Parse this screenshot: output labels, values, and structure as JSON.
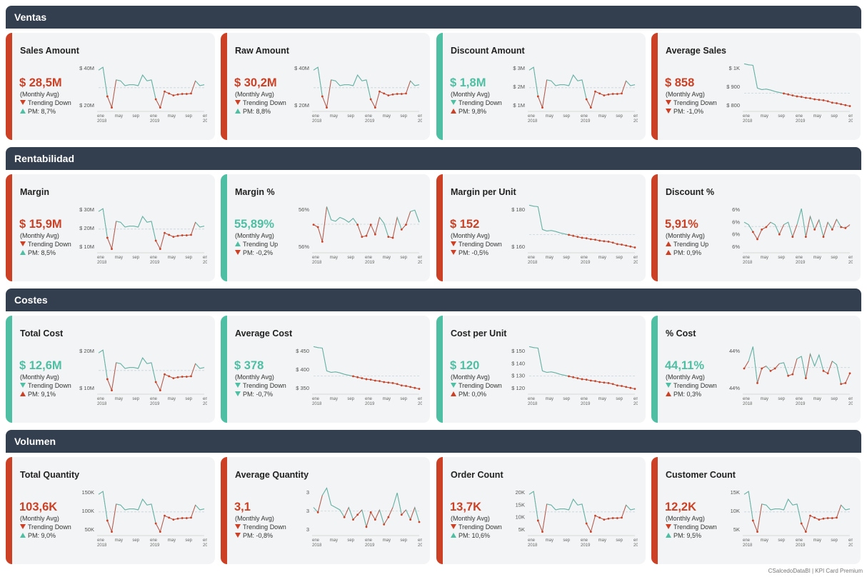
{
  "footer": "CSalcedoDataBI | KPI Card Premium",
  "colors": {
    "good": "#4fbfa3",
    "bad": "#cc4125",
    "line": "#8c9aa6",
    "header": "#333f4f"
  },
  "axis_labels": [
    "ene\n2018",
    "may",
    "sep",
    "ene\n2019",
    "may",
    "sep",
    "ene\n2020"
  ],
  "sections": [
    {
      "title": "Ventas",
      "cards": [
        {
          "title": "Sales Amount",
          "value": "$ 28,5M",
          "sub": "(Monthly Avg)",
          "trend": "Trending Down",
          "trend_dir": "down",
          "trend_good": false,
          "pm": "PM: 8,7%",
          "pm_dir": "up",
          "pm_good": true,
          "status": "bad",
          "ticks": [
            "$ 40M",
            "$ 20M"
          ],
          "shape": "wave"
        },
        {
          "title": "Raw Amount",
          "value": "$ 30,2M",
          "sub": "(Monthly Avg)",
          "trend": "Trending Down",
          "trend_dir": "down",
          "trend_good": false,
          "pm": "PM: 8,8%",
          "pm_dir": "up",
          "pm_good": true,
          "status": "bad",
          "ticks": [
            "$ 40M",
            "$ 20M"
          ],
          "shape": "wave"
        },
        {
          "title": "Discount Amount",
          "value": "$ 1,8M",
          "sub": "(Monthly Avg)",
          "trend": "Trending Down",
          "trend_dir": "down",
          "trend_good": true,
          "pm": "PM: 9,8%",
          "pm_dir": "up",
          "pm_good": false,
          "status": "good",
          "ticks": [
            "$ 3M",
            "$ 2M",
            "$ 1M"
          ],
          "shape": "wave"
        },
        {
          "title": "Average Sales",
          "value": "$ 858",
          "sub": "(Monthly Avg)",
          "trend": "Trending Down",
          "trend_dir": "down",
          "trend_good": false,
          "pm": "PM: -1,0%",
          "pm_dir": "down",
          "pm_good": false,
          "status": "bad",
          "ticks": [
            "$ 1K",
            "$ 900",
            "$ 800"
          ],
          "shape": "decay"
        }
      ]
    },
    {
      "title": "Rentabilidad",
      "cards": [
        {
          "title": "Margin",
          "value": "$ 15,9M",
          "sub": "(Monthly Avg)",
          "trend": "Trending Down",
          "trend_dir": "down",
          "trend_good": false,
          "pm": "PM: 8,5%",
          "pm_dir": "up",
          "pm_good": true,
          "status": "bad",
          "ticks": [
            "$ 30M",
            "$ 20M",
            "$ 10M"
          ],
          "shape": "wave"
        },
        {
          "title": "Margin %",
          "value": "55,89%",
          "sub": "(Monthly Avg)",
          "trend": "Trending Up",
          "trend_dir": "up",
          "trend_good": true,
          "pm": "PM: -0,2%",
          "pm_dir": "down",
          "pm_good": false,
          "status": "good",
          "ticks": [
            "56%",
            "56%"
          ],
          "shape": "noisy"
        },
        {
          "title": "Margin per Unit",
          "value": "$ 152",
          "sub": "(Monthly Avg)",
          "trend": "Trending Down",
          "trend_dir": "down",
          "trend_good": false,
          "pm": "PM: -0,5%",
          "pm_dir": "down",
          "pm_good": false,
          "status": "bad",
          "ticks": [
            "$ 180",
            "$ 160"
          ],
          "shape": "decay"
        },
        {
          "title": "Discount %",
          "value": "5,91%",
          "sub": "(Monthly Avg)",
          "trend": "Trending Up",
          "trend_dir": "up",
          "trend_good": false,
          "pm": "PM: 0,9%",
          "pm_dir": "up",
          "pm_good": false,
          "status": "bad",
          "ticks": [
            "6%",
            "6%",
            "6%",
            "6%"
          ],
          "shape": "noisy2"
        }
      ]
    },
    {
      "title": "Costes",
      "cards": [
        {
          "title": "Total Cost",
          "value": "$ 12,6M",
          "sub": "(Monthly Avg)",
          "trend": "Trending Down",
          "trend_dir": "down",
          "trend_good": true,
          "pm": "PM: 9,1%",
          "pm_dir": "up",
          "pm_good": false,
          "status": "good",
          "ticks": [
            "$ 20M",
            "$ 10M"
          ],
          "shape": "wave"
        },
        {
          "title": "Average Cost",
          "value": "$ 378",
          "sub": "(Monthly Avg)",
          "trend": "Trending Down",
          "trend_dir": "down",
          "trend_good": true,
          "pm": "PM: -0,7%",
          "pm_dir": "down",
          "pm_good": true,
          "status": "good",
          "ticks": [
            "$ 450",
            "$ 400",
            "$ 350"
          ],
          "shape": "decay"
        },
        {
          "title": "Cost per Unit",
          "value": "$ 120",
          "sub": "(Monthly Avg)",
          "trend": "Trending Down",
          "trend_dir": "down",
          "trend_good": true,
          "pm": "PM: 0,0%",
          "pm_dir": "up",
          "pm_good": false,
          "status": "good",
          "ticks": [
            "$ 150",
            "$ 140",
            "$ 130",
            "$ 120"
          ],
          "shape": "decay"
        },
        {
          "title": "% Cost",
          "value": "44,11%",
          "sub": "(Monthly Avg)",
          "trend": "Trending Down",
          "trend_dir": "down",
          "trend_good": true,
          "pm": "PM: 0,3%",
          "pm_dir": "up",
          "pm_good": false,
          "status": "good",
          "ticks": [
            "44%",
            "44%"
          ],
          "shape": "noisy3"
        }
      ]
    },
    {
      "title": "Volumen",
      "cards": [
        {
          "title": "Total Quantity",
          "value": "103,6K",
          "sub": "(Monthly Avg)",
          "trend": "Trending Down",
          "trend_dir": "down",
          "trend_good": false,
          "pm": "PM: 9,0%",
          "pm_dir": "up",
          "pm_good": true,
          "status": "bad",
          "ticks": [
            "150K",
            "100K",
            "50K"
          ],
          "shape": "wave"
        },
        {
          "title": "Average Quantity",
          "value": "3,1",
          "sub": "(Monthly Avg)",
          "trend": "Trending Down",
          "trend_dir": "down",
          "trend_good": false,
          "pm": "PM: -0,8%",
          "pm_dir": "down",
          "pm_good": false,
          "status": "bad",
          "ticks": [
            "3",
            "3",
            "3"
          ],
          "shape": "noisy4"
        },
        {
          "title": "Order Count",
          "value": "13,7K",
          "sub": "(Monthly Avg)",
          "trend": "Trending Down",
          "trend_dir": "down",
          "trend_good": false,
          "pm": "PM: 10,6%",
          "pm_dir": "up",
          "pm_good": true,
          "status": "bad",
          "ticks": [
            "20K",
            "15K",
            "10K",
            "5K"
          ],
          "shape": "wave"
        },
        {
          "title": "Customer Count",
          "value": "12,2K",
          "sub": "(Monthly Avg)",
          "trend": "Trending Down",
          "trend_dir": "down",
          "trend_good": false,
          "pm": "PM: 9,5%",
          "pm_dir": "up",
          "pm_good": true,
          "status": "bad",
          "ticks": [
            "15K",
            "10K",
            "5K"
          ],
          "shape": "wave"
        }
      ]
    }
  ]
}
